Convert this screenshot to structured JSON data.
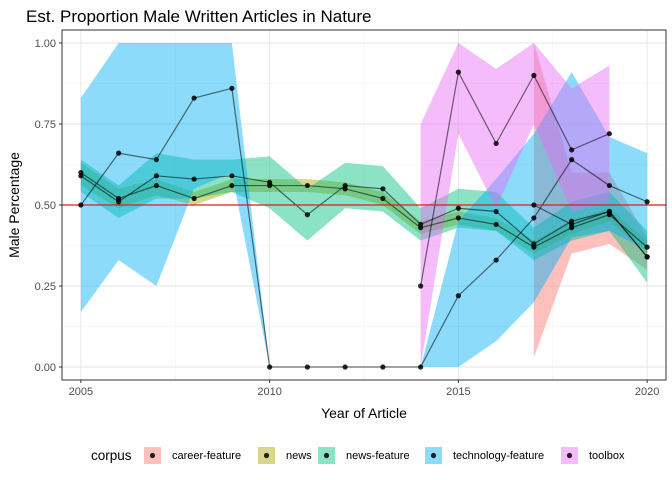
{
  "chart_data": {
    "type": "line",
    "title": "Est. Proportion Male Written Articles in Nature",
    "xlabel": "Year of Article",
    "ylabel": "Male Percentage",
    "xlim": [
      2004.5,
      2020.5
    ],
    "ylim": [
      -0.04,
      1.04
    ],
    "x_ticks": [
      2005,
      2010,
      2015,
      2020
    ],
    "y_ticks": [
      0.0,
      0.25,
      0.5,
      0.75,
      1.0
    ],
    "x_tick_labels": [
      "2005",
      "2010",
      "2015",
      "2020"
    ],
    "y_tick_labels": [
      "0.00",
      "0.25",
      "0.50",
      "0.75",
      "1.00"
    ],
    "grid": true,
    "reference_line": {
      "y": 0.5,
      "color": "#e41a1c"
    },
    "legend": {
      "title": "corpus",
      "position": "bottom"
    },
    "series": [
      {
        "name": "career-feature",
        "color": "#F8766D",
        "points": [
          [
            2017,
            0.5
          ],
          [
            2018,
            0.44
          ],
          [
            2019,
            0.48
          ],
          [
            2020,
            0.34
          ]
        ],
        "band": [
          [
            2017,
            0.03,
            1.0
          ],
          [
            2018,
            0.35,
            0.6
          ],
          [
            2019,
            0.38,
            0.6
          ],
          [
            2020,
            0.3,
            0.4
          ]
        ]
      },
      {
        "name": "news",
        "color": "#A3A500",
        "points": [
          [
            2005,
            0.6
          ],
          [
            2006,
            0.52
          ],
          [
            2007,
            0.56
          ],
          [
            2008,
            0.52
          ],
          [
            2009,
            0.56
          ],
          [
            2010,
            0.56
          ],
          [
            2011,
            0.56
          ],
          [
            2012,
            0.55
          ],
          [
            2013,
            0.52
          ],
          [
            2014,
            0.43
          ],
          [
            2015,
            0.46
          ],
          [
            2016,
            0.44
          ],
          [
            2017,
            0.37
          ],
          [
            2018,
            0.43
          ],
          [
            2019,
            0.47
          ],
          [
            2020,
            0.37
          ]
        ],
        "band": [
          [
            2005,
            0.56,
            0.63
          ],
          [
            2006,
            0.49,
            0.55
          ],
          [
            2007,
            0.53,
            0.58
          ],
          [
            2008,
            0.5,
            0.54
          ],
          [
            2009,
            0.54,
            0.58
          ],
          [
            2010,
            0.54,
            0.58
          ],
          [
            2011,
            0.54,
            0.58
          ],
          [
            2012,
            0.53,
            0.57
          ],
          [
            2013,
            0.5,
            0.54
          ],
          [
            2014,
            0.41,
            0.45
          ],
          [
            2015,
            0.44,
            0.48
          ],
          [
            2016,
            0.42,
            0.46
          ],
          [
            2017,
            0.35,
            0.39
          ],
          [
            2018,
            0.41,
            0.45
          ],
          [
            2019,
            0.45,
            0.49
          ],
          [
            2020,
            0.35,
            0.39
          ]
        ]
      },
      {
        "name": "news-feature",
        "color": "#00BF7D",
        "points": [
          [
            2005,
            0.59
          ],
          [
            2006,
            0.51
          ],
          [
            2007,
            0.59
          ],
          [
            2008,
            0.58
          ],
          [
            2009,
            0.59
          ],
          [
            2010,
            0.57
          ],
          [
            2011,
            0.47
          ],
          [
            2012,
            0.56
          ],
          [
            2013,
            0.55
          ],
          [
            2014,
            0.44
          ],
          [
            2015,
            0.49
          ],
          [
            2016,
            0.48
          ],
          [
            2017,
            0.38
          ],
          [
            2018,
            0.45
          ],
          [
            2019,
            0.48
          ],
          [
            2020,
            0.34
          ]
        ],
        "band": [
          [
            2005,
            0.54,
            0.64
          ],
          [
            2006,
            0.46,
            0.56
          ],
          [
            2007,
            0.52,
            0.66
          ],
          [
            2008,
            0.52,
            0.64
          ],
          [
            2009,
            0.54,
            0.64
          ],
          [
            2010,
            0.49,
            0.65
          ],
          [
            2011,
            0.39,
            0.55
          ],
          [
            2012,
            0.49,
            0.63
          ],
          [
            2013,
            0.48,
            0.62
          ],
          [
            2014,
            0.39,
            0.49
          ],
          [
            2015,
            0.43,
            0.55
          ],
          [
            2016,
            0.42,
            0.54
          ],
          [
            2017,
            0.33,
            0.43
          ],
          [
            2018,
            0.39,
            0.51
          ],
          [
            2019,
            0.42,
            0.54
          ],
          [
            2020,
            0.26,
            0.42
          ]
        ]
      },
      {
        "name": "technology-feature",
        "color": "#00B0F6",
        "points": [
          [
            2005,
            0.5
          ],
          [
            2006,
            0.66
          ],
          [
            2007,
            0.64
          ],
          [
            2008,
            0.83
          ],
          [
            2009,
            0.86
          ],
          [
            2010,
            0.0
          ],
          [
            2011,
            0.0
          ],
          [
            2012,
            0.0
          ],
          [
            2013,
            0.0
          ],
          [
            2014,
            0.0
          ],
          [
            2015,
            0.22
          ],
          [
            2016,
            0.33
          ],
          [
            2017,
            0.46
          ],
          [
            2018,
            0.64
          ],
          [
            2019,
            0.56
          ],
          [
            2020,
            0.51
          ]
        ],
        "band": [
          [
            2005,
            0.17,
            0.83
          ],
          [
            2006,
            0.33,
            1.0
          ],
          [
            2007,
            0.25,
            1.0
          ],
          [
            2008,
            0.55,
            1.0
          ],
          [
            2009,
            0.6,
            1.0
          ],
          [
            2010,
            0.0,
            0.0
          ],
          [
            2011,
            0.0,
            0.0
          ],
          [
            2012,
            0.0,
            0.0
          ],
          [
            2013,
            0.0,
            0.0
          ],
          [
            2014,
            0.0,
            0.0
          ],
          [
            2015,
            0.0,
            0.45
          ],
          [
            2016,
            0.08,
            0.58
          ],
          [
            2017,
            0.2,
            0.72
          ],
          [
            2018,
            0.4,
            0.91
          ],
          [
            2019,
            0.42,
            0.71
          ],
          [
            2020,
            0.36,
            0.66
          ]
        ]
      },
      {
        "name": "toolbox",
        "color": "#E76BF3",
        "points": [
          [
            2014,
            0.25
          ],
          [
            2015,
            0.91
          ],
          [
            2016,
            0.69
          ],
          [
            2017,
            0.9
          ],
          [
            2018,
            0.67
          ],
          [
            2019,
            0.72
          ]
        ],
        "band": [
          [
            2014,
            0.0,
            0.75
          ],
          [
            2015,
            0.72,
            1.0
          ],
          [
            2016,
            0.49,
            0.92
          ],
          [
            2017,
            0.75,
            1.0
          ],
          [
            2018,
            0.48,
            0.86
          ],
          [
            2019,
            0.51,
            0.93
          ]
        ]
      }
    ]
  }
}
